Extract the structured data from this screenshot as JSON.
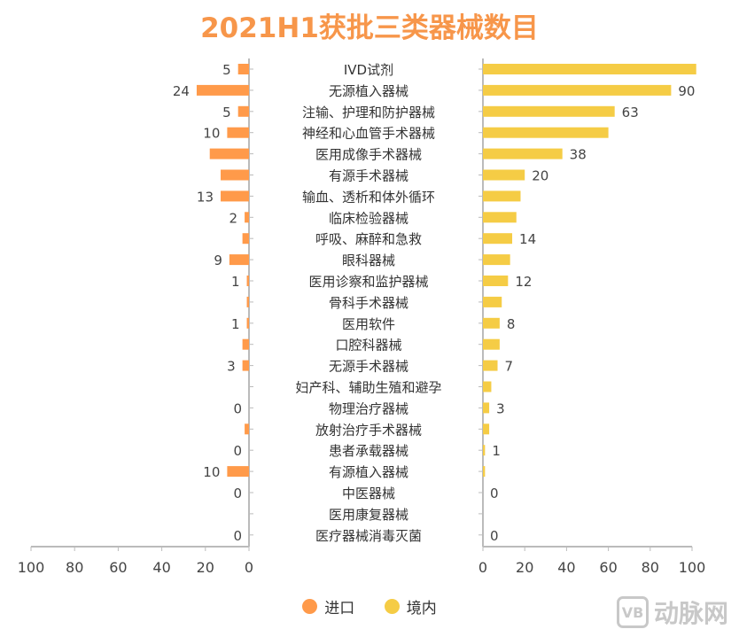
{
  "chart_data": {
    "type": "bar",
    "title": "2021H1获批三类器械数目",
    "categories": [
      "IVD试剂",
      "无源植入器械",
      "注输、护理和防护器械",
      "神经和心血管手术器械",
      "医用成像手术器械",
      "有源手术器械",
      "输血、透析和体外循环",
      "临床检验器械",
      "呼吸、麻醉和急救",
      "眼科器械",
      "医用诊察和监护器械",
      "骨科手术器械",
      "医用软件",
      "口腔科器械",
      "无源手术器械",
      "妇产科、辅助生殖和避孕",
      "物理治疗器械",
      "放射治疗手术器械",
      "患者承载器械",
      "有源植入器械",
      "中医器械",
      "医用康复器械",
      "医疗器械消毒灭菌"
    ],
    "series": [
      {
        "name": "进口",
        "color": "#FF9A4A",
        "side": "left",
        "values": [
          5,
          24,
          5,
          10,
          18,
          13,
          13,
          2,
          3,
          9,
          1,
          1,
          1,
          3,
          3,
          0,
          0,
          2,
          0,
          10,
          0,
          0,
          0
        ],
        "labels": [
          "5",
          "24",
          "5",
          "10",
          "",
          "",
          "13",
          "2",
          "",
          "9",
          "1",
          "",
          "1",
          "",
          "3",
          "",
          "0",
          "",
          "0",
          "10",
          "0",
          "",
          "0"
        ]
      },
      {
        "name": "境内",
        "color": "#F5CC45",
        "side": "right",
        "values": [
          102,
          90,
          63,
          60,
          38,
          20,
          18,
          16,
          14,
          13,
          12,
          9,
          8,
          8,
          7,
          4,
          3,
          3,
          1,
          1,
          0,
          0,
          0
        ],
        "labels": [
          "",
          "90",
          "63",
          "",
          "38",
          "20",
          "",
          "",
          "14",
          "",
          "12",
          "",
          "8",
          "",
          "7",
          "",
          "3",
          "",
          "1",
          "",
          "0",
          "",
          "0"
        ]
      }
    ],
    "left_axis": {
      "range": [
        100,
        0
      ],
      "ticks": [
        "100",
        "80",
        "60",
        "40",
        "20",
        "0"
      ]
    },
    "right_axis": {
      "range": [
        0,
        100
      ],
      "ticks": [
        "0",
        "20",
        "40",
        "60",
        "80",
        "100"
      ]
    },
    "legend": "bottom-center",
    "grid": false
  },
  "legend": {
    "items": [
      "进口",
      "境内"
    ]
  },
  "watermark": "动脉网"
}
